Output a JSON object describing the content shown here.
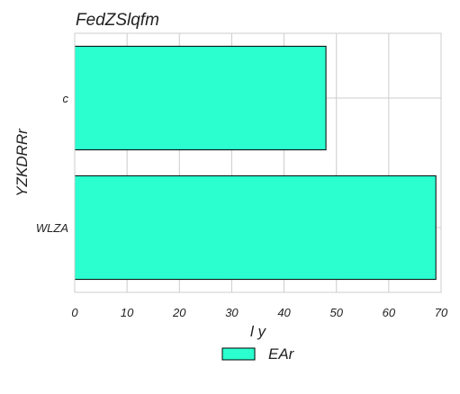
{
  "chart_data": {
    "type": "bar",
    "orientation": "horizontal",
    "title": "FedZSlqfm",
    "xlabel": "l y",
    "ylabel": "YZKDRRr",
    "categories": [
      "c",
      "WLZA"
    ],
    "series": [
      {
        "name": "EAr",
        "values": [
          48,
          69
        ],
        "color": "#2bffcf"
      }
    ],
    "xlim": [
      0,
      70
    ],
    "xticks": [
      "0",
      "10",
      "20",
      "30",
      "40",
      "50",
      "60",
      "70"
    ],
    "grid": true,
    "legend": "bottom-center"
  }
}
